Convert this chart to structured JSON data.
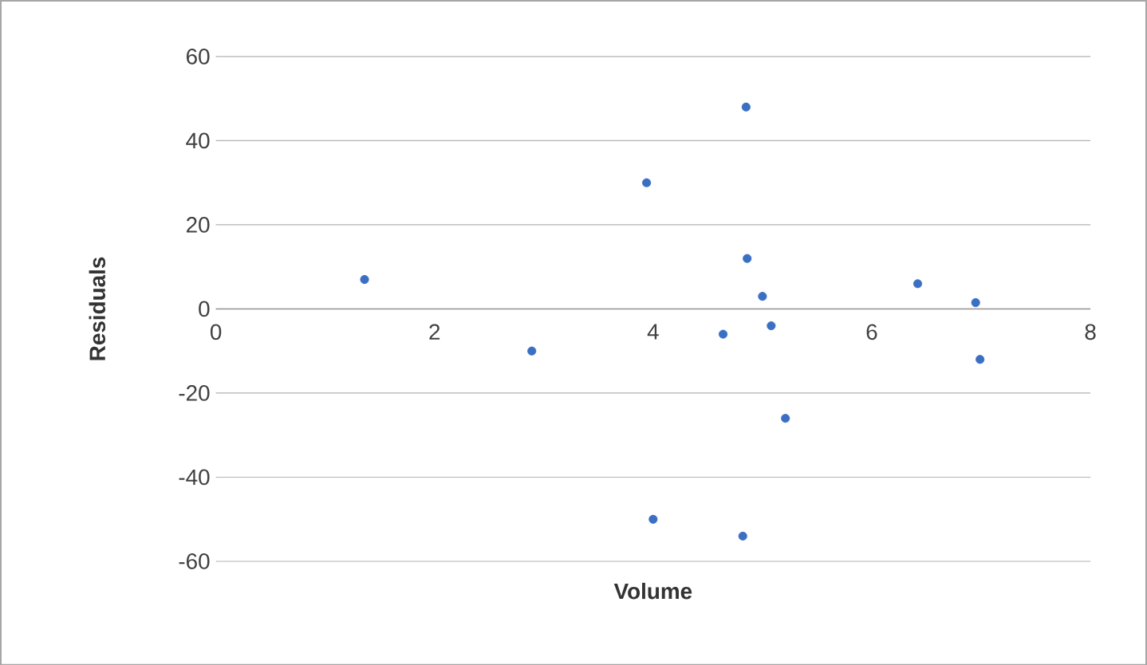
{
  "chart_data": {
    "type": "scatter",
    "xlabel": "Volume",
    "ylabel": "Residuals",
    "x": [
      1.36,
      2.89,
      3.94,
      4.0,
      4.85,
      4.86,
      4.64,
      5.0,
      5.08,
      4.82,
      5.21,
      6.42,
      6.95,
      6.99
    ],
    "series": [
      {
        "color": "#3a6fc4",
        "values": [
          7,
          -10,
          30,
          -50,
          48,
          12,
          -6,
          3,
          -4,
          -54,
          -26,
          6,
          1.5,
          -12
        ]
      }
    ],
    "xlim": [
      0,
      8
    ],
    "xticks": [
      0,
      2,
      4,
      6,
      8
    ],
    "ylim": [
      -60,
      60
    ],
    "yticks": [
      -60,
      -40,
      -20,
      0,
      20,
      40,
      60
    ],
    "grid": "y",
    "marker": "circle"
  }
}
